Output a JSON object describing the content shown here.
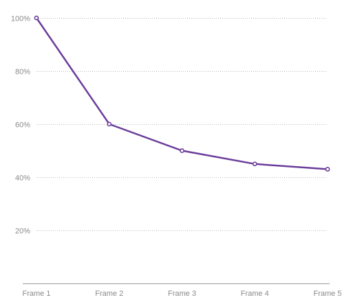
{
  "chart_data": {
    "type": "line",
    "title": "",
    "xlabel": "",
    "ylabel": "",
    "categories": [
      "Frame 1",
      "Frame 2",
      "Frame 3",
      "Frame 4",
      "Frame 5"
    ],
    "series": [
      {
        "values": [
          100,
          60,
          50,
          45,
          43
        ]
      }
    ],
    "ylim": [
      0,
      100
    ],
    "yticks": [
      20,
      40,
      60,
      80,
      100
    ],
    "ytick_labels": [
      "20%",
      "40%",
      "60%",
      "80%",
      "100%"
    ],
    "grid": "horizontal-dotted",
    "legend": "none",
    "colors": {
      "line": "#6a3d9a",
      "grid": "#b8b8b8",
      "axis": "#9a9a9a",
      "tick_text": "#8a8a8a"
    }
  }
}
